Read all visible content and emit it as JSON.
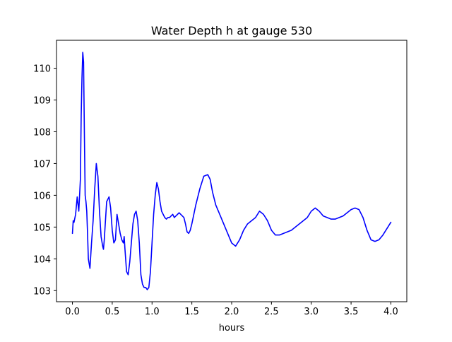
{
  "chart_data": {
    "type": "line",
    "title": "Water Depth h at gauge 530",
    "xlabel": "hours",
    "ylabel": "",
    "xlim": [
      -0.2,
      4.2
    ],
    "ylim": [
      102.65,
      110.88
    ],
    "xticks": [
      0.0,
      0.5,
      1.0,
      1.5,
      2.0,
      2.5,
      3.0,
      3.5,
      4.0
    ],
    "xtick_labels": [
      "0.0",
      "0.5",
      "1.0",
      "1.5",
      "2.0",
      "2.5",
      "3.0",
      "3.5",
      "4.0"
    ],
    "yticks": [
      103,
      104,
      105,
      106,
      107,
      108,
      109,
      110
    ],
    "ytick_labels": [
      "103",
      "104",
      "105",
      "106",
      "107",
      "108",
      "109",
      "110"
    ],
    "grid": false,
    "legend": "none",
    "series": [
      {
        "color": "#0000ff",
        "x": [
          0.0,
          0.01,
          0.02,
          0.04,
          0.06,
          0.08,
          0.1,
          0.11,
          0.12,
          0.13,
          0.14,
          0.15,
          0.16,
          0.17,
          0.18,
          0.19,
          0.2,
          0.22,
          0.24,
          0.26,
          0.28,
          0.3,
          0.32,
          0.34,
          0.36,
          0.38,
          0.39,
          0.4,
          0.41,
          0.42,
          0.43,
          0.44,
          0.46,
          0.48,
          0.5,
          0.52,
          0.54,
          0.56,
          0.58,
          0.6,
          0.62,
          0.64,
          0.65,
          0.66,
          0.68,
          0.7,
          0.72,
          0.74,
          0.76,
          0.78,
          0.8,
          0.82,
          0.84,
          0.86,
          0.88,
          0.9,
          0.92,
          0.94,
          0.96,
          0.98,
          1.0,
          1.02,
          1.04,
          1.06,
          1.08,
          1.1,
          1.12,
          1.14,
          1.16,
          1.18,
          1.2,
          1.22,
          1.24,
          1.26,
          1.28,
          1.3,
          1.32,
          1.34,
          1.36,
          1.38,
          1.4,
          1.42,
          1.44,
          1.46,
          1.48,
          1.5,
          1.55,
          1.6,
          1.65,
          1.7,
          1.73,
          1.76,
          1.8,
          1.85,
          1.9,
          1.95,
          2.0,
          2.05,
          2.1,
          2.15,
          2.2,
          2.25,
          2.3,
          2.35,
          2.4,
          2.45,
          2.5,
          2.55,
          2.6,
          2.65,
          2.7,
          2.75,
          2.8,
          2.85,
          2.9,
          2.95,
          3.0,
          3.05,
          3.1,
          3.15,
          3.2,
          3.25,
          3.3,
          3.35,
          3.4,
          3.45,
          3.5,
          3.55,
          3.6,
          3.65,
          3.7,
          3.75,
          3.8,
          3.85,
          3.9,
          3.95,
          4.0
        ],
        "y": [
          104.8,
          105.2,
          105.15,
          105.4,
          105.95,
          105.5,
          106.5,
          108.5,
          109.7,
          110.5,
          110.2,
          108.0,
          106.0,
          105.8,
          105.5,
          104.8,
          104.0,
          103.7,
          104.5,
          105.2,
          106.2,
          107.0,
          106.6,
          105.5,
          104.7,
          104.4,
          104.3,
          104.6,
          105.0,
          105.4,
          105.8,
          105.85,
          105.95,
          105.6,
          104.9,
          104.5,
          104.6,
          105.4,
          105.1,
          104.8,
          104.6,
          104.5,
          104.7,
          104.3,
          103.6,
          103.5,
          103.9,
          104.5,
          105.1,
          105.4,
          105.5,
          105.2,
          104.5,
          103.5,
          103.2,
          103.1,
          103.1,
          103.03,
          103.1,
          103.6,
          104.5,
          105.4,
          106.0,
          106.4,
          106.2,
          105.8,
          105.5,
          105.4,
          105.3,
          105.25,
          105.3,
          105.3,
          105.35,
          105.4,
          105.3,
          105.35,
          105.4,
          105.45,
          105.4,
          105.35,
          105.3,
          105.1,
          104.85,
          104.8,
          104.9,
          105.1,
          105.7,
          106.2,
          106.6,
          106.65,
          106.5,
          106.1,
          105.7,
          105.4,
          105.1,
          104.8,
          104.5,
          104.4,
          104.6,
          104.9,
          105.1,
          105.2,
          105.3,
          105.5,
          105.4,
          105.2,
          104.9,
          104.75,
          104.75,
          104.8,
          104.85,
          104.9,
          105.0,
          105.1,
          105.2,
          105.3,
          105.5,
          105.6,
          105.5,
          105.35,
          105.3,
          105.25,
          105.25,
          105.3,
          105.35,
          105.45,
          105.55,
          105.6,
          105.55,
          105.3,
          104.9,
          104.6,
          104.55,
          104.6,
          104.75,
          104.95,
          105.15
        ]
      }
    ]
  }
}
